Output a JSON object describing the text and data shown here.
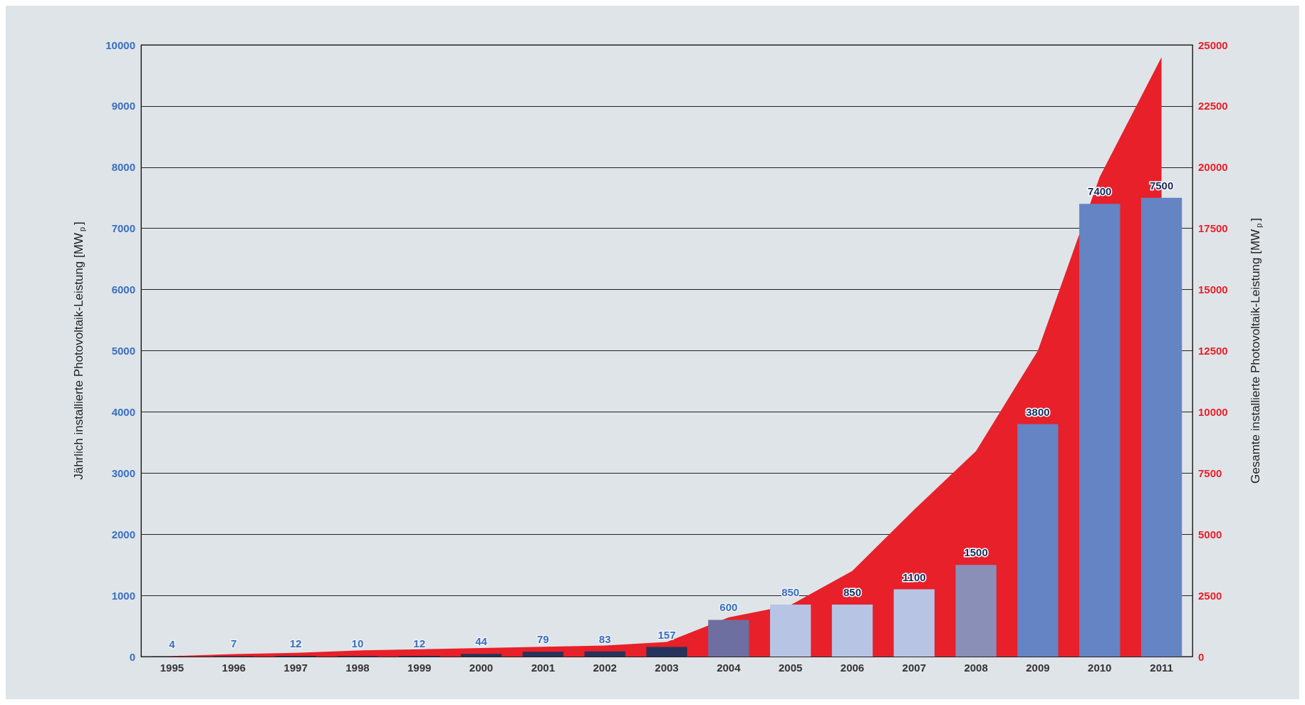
{
  "chart_data": {
    "type": "bar",
    "ylabel": "Jährlich installierte Photovoltaik-Leistung [MW$_{p}$]",
    "y2label": "Gesamte installierte Photovoltaik-Leistung [MW$_{p}$]",
    "categories": [
      "1995",
      "1996",
      "1997",
      "1998",
      "1999",
      "2000",
      "2001",
      "2002",
      "2003",
      "2004",
      "2005",
      "2006",
      "2007",
      "2008",
      "2009",
      "2010",
      "2011"
    ],
    "series": [
      {
        "colors": [
          "#27335a",
          "#27335a",
          "#27335a",
          "#27335a",
          "#27335a",
          "#27335a",
          "#27335a",
          "#27335a",
          "#27335a",
          "#6d6fa0",
          "#b8c4e4",
          "#b8c4e4",
          "#b8c4e4",
          "#8a8fb8",
          "#6484c4",
          "#6484c4",
          "#6484c4"
        ],
        "values": [
          4,
          7,
          12,
          10,
          12,
          44,
          79,
          83,
          157,
          600,
          850,
          850,
          1100,
          1500,
          3800,
          7400,
          7500
        ],
        "value_labels": [
          "4",
          "7",
          "12",
          "10",
          "12",
          "44",
          "79",
          "83",
          "157",
          "600",
          "850",
          "850",
          "1100",
          "1500",
          "3800",
          "7400",
          "7500"
        ]
      },
      {
        "type": "area",
        "axis": "y2",
        "color": "#e8202a",
        "values": [
          20,
          100,
          150,
          250,
          300,
          350,
          400,
          450,
          600,
          1600,
          2100,
          3500,
          6000,
          8400,
          12500,
          19600,
          24500
        ]
      }
    ],
    "ylim": [
      0,
      10000
    ],
    "yticks": [
      0,
      1000,
      2000,
      3000,
      4000,
      5000,
      6000,
      7000,
      8000,
      9000,
      10000
    ],
    "y2lim": [
      0,
      25000
    ],
    "y2ticks": [
      0,
      2500,
      5000,
      7500,
      10000,
      12500,
      15000,
      17500,
      20000,
      22500,
      25000
    ],
    "grid": "y"
  }
}
